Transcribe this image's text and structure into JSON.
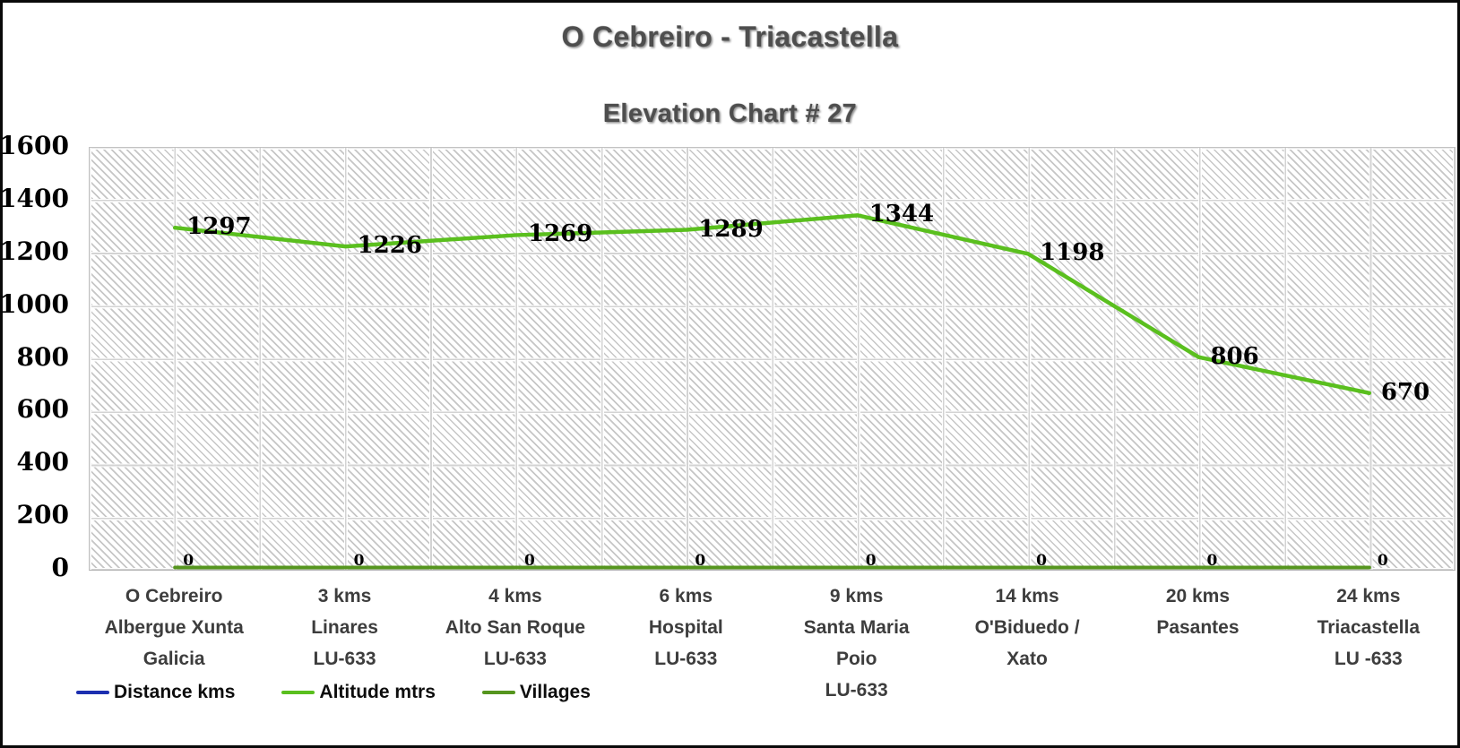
{
  "chart_data": {
    "type": "line",
    "title": "O Cebreiro - Triacastella",
    "subtitle": "Elevation Chart # 27",
    "ylim": [
      0,
      1600
    ],
    "yticks": [
      0,
      200,
      400,
      600,
      800,
      1000,
      1200,
      1400,
      1600
    ],
    "grid": true,
    "plot_background": "light-diagonal-hatch",
    "legend_position": "bottom-left",
    "categories": [
      [
        "O Cebreiro",
        "Albergue Xunta",
        "Galicia"
      ],
      [
        "3  kms",
        "Linares",
        "LU-633"
      ],
      [
        "4 kms",
        "Alto San Roque",
        "LU-633"
      ],
      [
        "6 kms",
        "Hospital",
        "LU-633"
      ],
      [
        "9 kms",
        "Santa Maria",
        "Poio",
        "LU-633"
      ],
      [
        "14 kms",
        "O'Biduedo /",
        "Xato"
      ],
      [
        "20 kms",
        "Pasantes"
      ],
      [
        "24 kms",
        "Triacastella",
        "LU -633"
      ]
    ],
    "series": [
      {
        "name": "Distance kms",
        "color": "#1c2fb0",
        "values_visible_on_plot": false
      },
      {
        "name": "Altitude mtrs",
        "color": "#5abf1e",
        "values": [
          1297,
          1226,
          1269,
          1289,
          1344,
          1198,
          806,
          670
        ],
        "data_labels": true
      },
      {
        "name": "Villages",
        "color": "#55951e",
        "values": [
          0,
          0,
          0,
          0,
          0,
          0,
          0,
          0
        ],
        "data_labels": true
      }
    ]
  }
}
